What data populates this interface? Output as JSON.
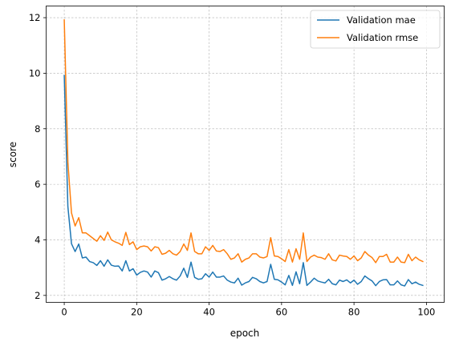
{
  "chart_data": {
    "type": "line",
    "title": "",
    "xlabel": "epoch",
    "ylabel": "score",
    "xlim": [
      -5,
      104.9
    ],
    "ylim": [
      1.75,
      12.42
    ],
    "xticks": [
      0,
      20,
      40,
      60,
      80,
      100
    ],
    "yticks": [
      2,
      4,
      6,
      8,
      10,
      12
    ],
    "grid": true,
    "legend": "top-right",
    "series": [
      {
        "name": "Validation mae",
        "color": "#1f77b4",
        "x": [
          0,
          1,
          2,
          3,
          4,
          5,
          6,
          7,
          8,
          9,
          10,
          11,
          12,
          13,
          14,
          15,
          16,
          17,
          18,
          19,
          20,
          21,
          22,
          23,
          24,
          25,
          26,
          27,
          28,
          29,
          30,
          31,
          32,
          33,
          34,
          35,
          36,
          37,
          38,
          39,
          40,
          41,
          42,
          43,
          44,
          45,
          46,
          47,
          48,
          49,
          50,
          51,
          52,
          53,
          54,
          55,
          56,
          57,
          58,
          59,
          60,
          61,
          62,
          63,
          64,
          65,
          66,
          67,
          68,
          69,
          70,
          71,
          72,
          73,
          74,
          75,
          76,
          77,
          78,
          79,
          80,
          81,
          82,
          83,
          84,
          85,
          86,
          87,
          88,
          89,
          90,
          91,
          92,
          93,
          94,
          95,
          96,
          97,
          98,
          99
        ],
        "values": [
          9.92,
          5.2,
          3.86,
          3.58,
          3.85,
          3.35,
          3.38,
          3.22,
          3.18,
          3.08,
          3.25,
          3.05,
          3.28,
          3.09,
          3.05,
          3.06,
          2.88,
          3.25,
          2.88,
          2.96,
          2.73,
          2.83,
          2.88,
          2.84,
          2.66,
          2.88,
          2.82,
          2.55,
          2.6,
          2.68,
          2.6,
          2.55,
          2.7,
          2.98,
          2.65,
          3.2,
          2.65,
          2.58,
          2.6,
          2.78,
          2.66,
          2.84,
          2.66,
          2.66,
          2.7,
          2.55,
          2.48,
          2.45,
          2.62,
          2.37,
          2.45,
          2.5,
          2.65,
          2.6,
          2.5,
          2.45,
          2.5,
          3.12,
          2.58,
          2.56,
          2.48,
          2.38,
          2.72,
          2.36,
          2.85,
          2.42,
          3.18,
          2.36,
          2.48,
          2.62,
          2.52,
          2.48,
          2.45,
          2.58,
          2.42,
          2.38,
          2.55,
          2.5,
          2.56,
          2.45,
          2.55,
          2.4,
          2.5,
          2.7,
          2.6,
          2.52,
          2.35,
          2.5,
          2.56,
          2.57,
          2.38,
          2.38,
          2.52,
          2.38,
          2.34,
          2.57,
          2.42,
          2.48,
          2.4,
          2.36
        ]
      },
      {
        "name": "Validation rmse",
        "color": "#ff7f0e",
        "x": [
          0,
          1,
          2,
          3,
          4,
          5,
          6,
          7,
          8,
          9,
          10,
          11,
          12,
          13,
          14,
          15,
          16,
          17,
          18,
          19,
          20,
          21,
          22,
          23,
          24,
          25,
          26,
          27,
          28,
          29,
          30,
          31,
          32,
          33,
          34,
          35,
          36,
          37,
          38,
          39,
          40,
          41,
          42,
          43,
          44,
          45,
          46,
          47,
          48,
          49,
          50,
          51,
          52,
          53,
          54,
          55,
          56,
          57,
          58,
          59,
          60,
          61,
          62,
          63,
          64,
          65,
          66,
          67,
          68,
          69,
          70,
          71,
          72,
          73,
          74,
          75,
          76,
          77,
          78,
          79,
          80,
          81,
          82,
          83,
          84,
          85,
          86,
          87,
          88,
          89,
          90,
          91,
          92,
          93,
          94,
          95,
          96,
          97,
          98,
          99
        ],
        "values": [
          11.92,
          6.8,
          4.97,
          4.5,
          4.8,
          4.25,
          4.25,
          4.15,
          4.05,
          3.95,
          4.15,
          3.98,
          4.28,
          4.0,
          3.93,
          3.88,
          3.8,
          4.27,
          3.83,
          3.93,
          3.65,
          3.75,
          3.78,
          3.75,
          3.6,
          3.75,
          3.72,
          3.48,
          3.52,
          3.62,
          3.5,
          3.45,
          3.58,
          3.85,
          3.62,
          4.25,
          3.58,
          3.5,
          3.5,
          3.75,
          3.62,
          3.8,
          3.6,
          3.58,
          3.65,
          3.5,
          3.3,
          3.35,
          3.5,
          3.2,
          3.3,
          3.35,
          3.5,
          3.5,
          3.38,
          3.35,
          3.4,
          4.08,
          3.42,
          3.4,
          3.32,
          3.22,
          3.65,
          3.2,
          3.68,
          3.3,
          4.25,
          3.22,
          3.38,
          3.45,
          3.38,
          3.36,
          3.3,
          3.5,
          3.28,
          3.24,
          3.45,
          3.42,
          3.4,
          3.3,
          3.42,
          3.25,
          3.35,
          3.58,
          3.45,
          3.36,
          3.18,
          3.4,
          3.4,
          3.48,
          3.2,
          3.2,
          3.38,
          3.2,
          3.18,
          3.48,
          3.25,
          3.38,
          3.28,
          3.22
        ]
      }
    ]
  }
}
